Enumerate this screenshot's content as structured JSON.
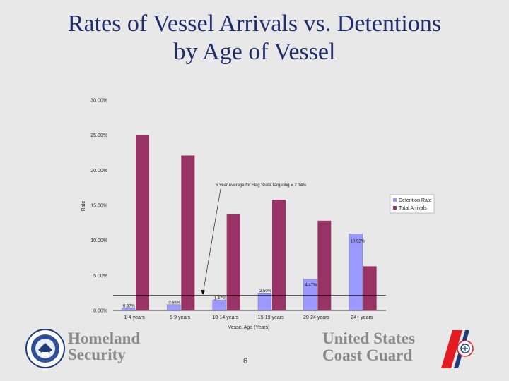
{
  "slide": {
    "title_line1": "Rates of Vessel Arrivals vs. Detentions",
    "title_line2": "by Age of Vessel",
    "page_number": "6"
  },
  "footer": {
    "homeland_line1": "Homeland",
    "homeland_line2": "Security",
    "uscg_line1": "United States",
    "uscg_line2": "Coast Guard"
  },
  "chart_data": {
    "type": "bar",
    "categories": [
      "1-4 years",
      "5-9 years",
      "10-14 years",
      "15-19 years",
      "20-24 years",
      "24+ years"
    ],
    "series": [
      {
        "name": "Detention Rate",
        "color": "#9999ff",
        "values": [
          0.37,
          0.84,
          1.47,
          2.5,
          4.47,
          10.92
        ],
        "labels": [
          "0.37%",
          "0.84%",
          "1.47%",
          "2.50%",
          "4.47%",
          "10.92%"
        ]
      },
      {
        "name": "Total Arrivals",
        "color": "#993366",
        "values": [
          25.0,
          22.1,
          13.7,
          15.8,
          12.8,
          6.3
        ]
      }
    ],
    "y_ticks": [
      "0.00%",
      "5.00%",
      "10.00%",
      "15.00%",
      "20.00%",
      "25.00%",
      "30.00%"
    ],
    "ylim": [
      0,
      30
    ],
    "xlabel": "Vessel Age (Years)",
    "ylabel": "Rate",
    "reference_line": {
      "value": 2.14,
      "label": "5 Year Average for Flag State Targeting = 2.14%"
    },
    "legend_position": "right",
    "grid": false
  }
}
